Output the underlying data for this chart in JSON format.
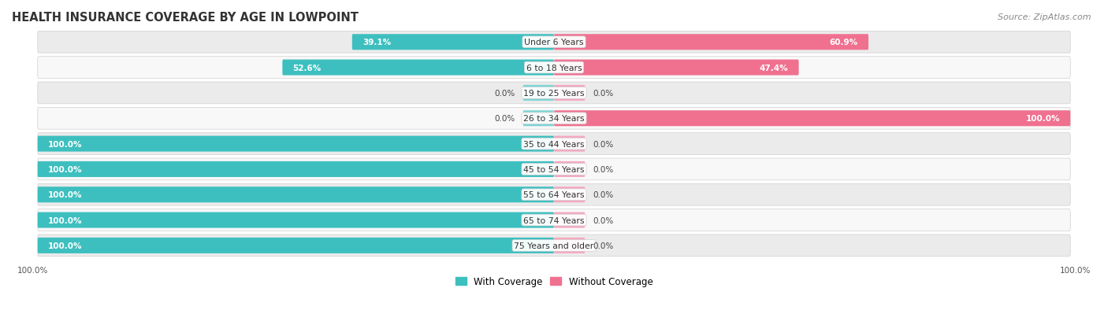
{
  "title": "HEALTH INSURANCE COVERAGE BY AGE IN LOWPOINT",
  "source": "Source: ZipAtlas.com",
  "categories": [
    "Under 6 Years",
    "6 to 18 Years",
    "19 to 25 Years",
    "26 to 34 Years",
    "35 to 44 Years",
    "45 to 54 Years",
    "55 to 64 Years",
    "65 to 74 Years",
    "75 Years and older"
  ],
  "with_coverage": [
    39.1,
    52.6,
    0.0,
    0.0,
    100.0,
    100.0,
    100.0,
    100.0,
    100.0
  ],
  "without_coverage": [
    60.9,
    47.4,
    0.0,
    100.0,
    0.0,
    0.0,
    0.0,
    0.0,
    0.0
  ],
  "color_with": "#3DBFBF",
  "color_with_stub": "#7DD4D4",
  "color_without": "#F07090",
  "color_without_stub": "#F5A8BF",
  "bg_row_odd": "#EBEBEB",
  "bg_row_even": "#F8F8F8",
  "title_fontsize": 10.5,
  "source_fontsize": 8,
  "bar_height": 0.62,
  "stub_value": 6.0,
  "xlim_left": -100,
  "xlim_right": 100,
  "legend_labels": [
    "With Coverage",
    "Without Coverage"
  ]
}
